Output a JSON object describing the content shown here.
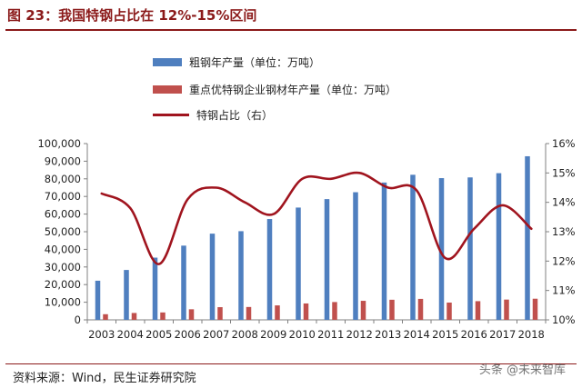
{
  "header": {
    "title": "图 23：我国特钢占比在 12%-15%区间"
  },
  "footer": {
    "source": "资料来源：Wind，民生证券研究院",
    "watermark": "头条 @未来智库"
  },
  "colors": {
    "title": "#8b1a1a",
    "bar_crude": "#4f7fbf",
    "bar_special": "#c0504d",
    "line_share": "#a0141e"
  },
  "chart_data": {
    "type": "bar",
    "title": "图 23：我国特钢占比在 12%-15%区间",
    "categories": [
      "2003",
      "2004",
      "2005",
      "2006",
      "2007",
      "2008",
      "2009",
      "2010",
      "2011",
      "2012",
      "2013",
      "2014",
      "2015",
      "2016",
      "2017",
      "2018"
    ],
    "series": [
      {
        "name": "粗钢年产量（单位：万吨）",
        "type": "bar",
        "axis": "left",
        "values": [
          22200,
          28300,
          35300,
          42100,
          48900,
          50300,
          57200,
          63700,
          68500,
          72400,
          77900,
          82300,
          80400,
          80800,
          83200,
          92800
        ]
      },
      {
        "name": "重点优特钢企业钢材年产量（单位：万吨）",
        "type": "bar",
        "axis": "left",
        "values": [
          3200,
          3900,
          4200,
          6000,
          7200,
          7300,
          8200,
          9300,
          10100,
          10800,
          11400,
          11900,
          9800,
          10600,
          11500,
          12000
        ]
      },
      {
        "name": "特钢占比（右）",
        "type": "line",
        "axis": "right",
        "values": [
          14.3,
          13.8,
          11.9,
          14.1,
          14.5,
          14.0,
          13.6,
          14.8,
          14.8,
          15.0,
          14.5,
          14.4,
          12.1,
          13.1,
          13.9,
          13.1
        ]
      }
    ],
    "y_left": {
      "min": 0,
      "max": 100000,
      "step": 10000,
      "tick_labels": [
        "0",
        "10,000",
        "20,000",
        "30,000",
        "40,000",
        "50,000",
        "60,000",
        "70,000",
        "80,000",
        "90,000",
        "100,000"
      ]
    },
    "y_right": {
      "min": 10,
      "max": 16,
      "step": 1,
      "tick_labels": [
        "10%",
        "11%",
        "12%",
        "13%",
        "14%",
        "15%",
        "16%"
      ]
    },
    "legend": [
      "粗钢年产量（单位：万吨）",
      "重点优特钢企业钢材年产量（单位：万吨）",
      "特钢占比（右）"
    ],
    "legend_position": "top",
    "grid": false
  }
}
